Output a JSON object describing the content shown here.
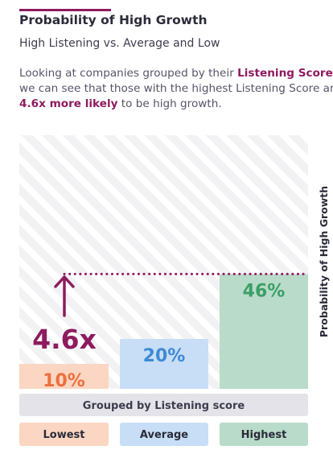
{
  "title": "Probability of High Growth",
  "subtitle": "High Listening vs. Average and Low",
  "description": {
    "line1_pre": "Looking at companies grouped by their ",
    "line1_highlight": "Listening Score,",
    "line2": "we can see that those with the highest Listening Score are",
    "line3_highlight": "4.6x more likely",
    "line3_post": " to be high growth."
  },
  "colors": {
    "accent": "#8e1b5f",
    "hatch_background": "#f2f2f4",
    "group_band": "#e3e3e9",
    "lowest": "#fbd6c2",
    "lowest_text": "#ee6f3e",
    "average": "#c7def6",
    "average_text": "#3d8ad6",
    "highest": "#b9dbc9",
    "highest_text": "#3c9e68"
  },
  "icons": {
    "multiplier_arrow": "arrow-up-icon"
  },
  "chart_data": {
    "type": "bar",
    "title": "Probability of High Growth",
    "ylabel": "Probability of High Growth",
    "xlabel": "Grouped by Listening score",
    "categories": [
      "Lowest",
      "Average",
      "Highest"
    ],
    "values": [
      10,
      20,
      46
    ],
    "value_labels": [
      "10%",
      "20%",
      "46%"
    ],
    "ylim": [
      0,
      100
    ],
    "grid": false,
    "annotation": {
      "text": "4.6x",
      "reference_value": 46
    }
  }
}
